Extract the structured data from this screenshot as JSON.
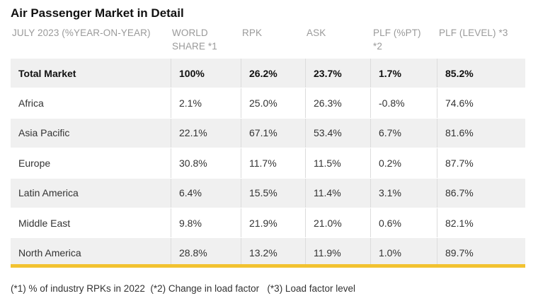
{
  "title": "Air Passenger Market in Detail",
  "columns": [
    "JULY 2023 (%YEAR-ON-YEAR)",
    "WORLD\nSHARE *1",
    "RPK",
    "ASK",
    "PLF (%PT)\n*2",
    "PLF (LEVEL) *3"
  ],
  "rows": [
    {
      "cells": [
        "Total Market",
        "100%",
        "26.2%",
        "23.7%",
        "1.7%",
        "85.2%"
      ],
      "bold": true
    },
    {
      "cells": [
        "Africa",
        "2.1%",
        "25.0%",
        "26.3%",
        "-0.8%",
        "74.6%"
      ]
    },
    {
      "cells": [
        "Asia Pacific",
        "22.1%",
        "67.1%",
        "53.4%",
        "6.7%",
        "81.6%"
      ]
    },
    {
      "cells": [
        "Europe",
        "30.8%",
        "11.7%",
        "11.5%",
        "0.2%",
        "87.7%"
      ]
    },
    {
      "cells": [
        "Latin America",
        "6.4%",
        "15.5%",
        "11.4%",
        "3.1%",
        "86.7%"
      ]
    },
    {
      "cells": [
        "Middle East",
        "9.8%",
        "21.9%",
        "21.0%",
        "0.6%",
        "82.1%"
      ]
    },
    {
      "cells": [
        "North America",
        "28.8%",
        "13.2%",
        "11.9%",
        "1.0%",
        "89.7%"
      ]
    }
  ],
  "footnote": "(*1) % of industry RPKs in 2022  (*2) Change in load factor   (*3) Load factor level",
  "accent_color": "#f2c230"
}
